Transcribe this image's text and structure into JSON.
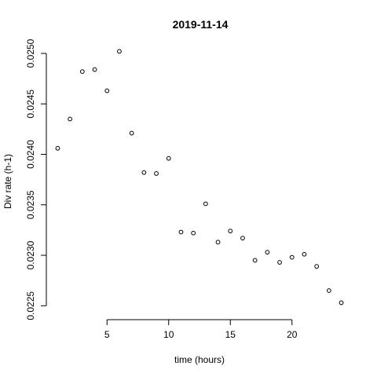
{
  "chart_data": {
    "type": "scatter",
    "title": "2019-11-14",
    "xlabel": "time (hours)",
    "ylabel": "Div rate (h-1)",
    "xlim": [
      0.08,
      24.92
    ],
    "ylim": [
      0.02244,
      0.02507
    ],
    "x_ticks": [
      5,
      10,
      15,
      20
    ],
    "x_tick_labels": [
      "5",
      "10",
      "15",
      "20"
    ],
    "y_ticks": [
      0.0225,
      0.023,
      0.0235,
      0.024,
      0.0245,
      0.025
    ],
    "y_tick_labels": [
      "0.0225",
      "0.0230",
      "0.0235",
      "0.0240",
      "0.0245",
      "0.0250"
    ],
    "grid": false,
    "marker": "open-circle",
    "x": [
      1,
      2,
      3,
      4,
      5,
      6,
      7,
      8,
      9,
      10,
      11,
      12,
      13,
      14,
      15,
      16,
      17,
      18,
      19,
      20,
      21,
      22,
      23,
      24
    ],
    "y": [
      0.02406,
      0.02435,
      0.02482,
      0.02484,
      0.02463,
      0.02502,
      0.02421,
      0.02382,
      0.02381,
      0.02396,
      0.02323,
      0.02322,
      0.02351,
      0.02313,
      0.02324,
      0.02317,
      0.02295,
      0.02303,
      0.02293,
      0.02298,
      0.02301,
      0.02289,
      0.02265,
      0.02253
    ]
  }
}
